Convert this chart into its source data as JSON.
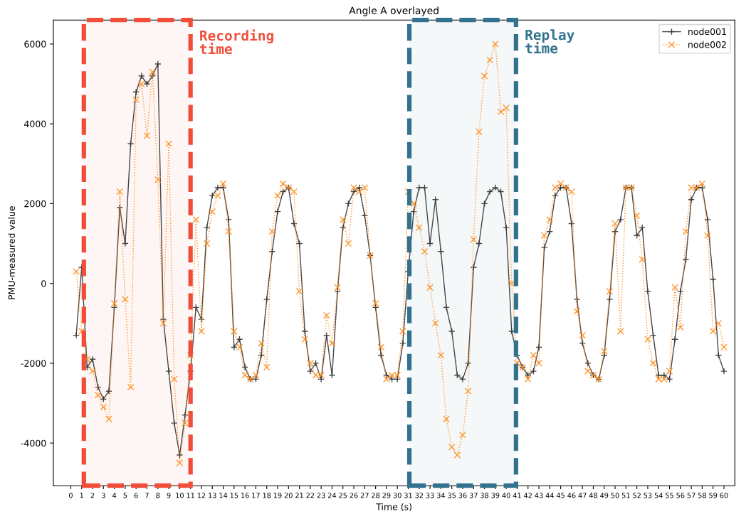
{
  "chart_data": {
    "type": "line",
    "title": "Angle A overlayed",
    "xlabel": "Time (s)",
    "ylabel": "PMU-measured value",
    "x": [
      0.5,
      1.0,
      1.5,
      2.0,
      2.5,
      3.0,
      3.5,
      4.0,
      4.5,
      5.0,
      5.5,
      6.0,
      6.5,
      7.0,
      7.5,
      8.0,
      8.5,
      9.0,
      9.5,
      10.0,
      10.5,
      11.0,
      11.5,
      12.0,
      12.5,
      13.0,
      13.5,
      14.0,
      14.5,
      15.0,
      15.5,
      16.0,
      16.5,
      17.0,
      17.5,
      18.0,
      18.5,
      19.0,
      19.5,
      20.0,
      20.5,
      21.0,
      21.5,
      22.0,
      22.5,
      23.0,
      23.5,
      24.0,
      24.5,
      25.0,
      25.5,
      26.0,
      26.5,
      27.0,
      27.5,
      28.0,
      28.5,
      29.0,
      29.5,
      30.0,
      30.5,
      31.0,
      31.5,
      32.0,
      32.5,
      33.0,
      33.5,
      34.0,
      34.5,
      35.0,
      35.5,
      36.0,
      36.5,
      37.0,
      37.5,
      38.0,
      38.5,
      39.0,
      39.5,
      40.0,
      40.5,
      41.0,
      41.5,
      42.0,
      42.5,
      43.0,
      43.5,
      44.0,
      44.5,
      45.0,
      45.5,
      46.0,
      46.5,
      47.0,
      47.5,
      48.0,
      48.5,
      49.0,
      49.5,
      50.0,
      50.5,
      51.0,
      51.5,
      52.0,
      52.5,
      53.0,
      53.5,
      54.0,
      54.5,
      55.0,
      55.5,
      56.0,
      56.5,
      57.0,
      57.5,
      58.0,
      58.5,
      59.0,
      59.5,
      60.0
    ],
    "series": [
      {
        "name": "node001",
        "color": "#333333",
        "marker": "plus",
        "line_style": "solid",
        "values": [
          -1300,
          400,
          -2100,
          -1900,
          -2600,
          -2900,
          -2700,
          -600,
          1900,
          1000,
          3500,
          4800,
          5200,
          5000,
          5200,
          5500,
          -900,
          -2200,
          -3500,
          -4300,
          -3300,
          -2200,
          -600,
          -900,
          1400,
          2200,
          2400,
          2400,
          1600,
          -1600,
          -1400,
          -2100,
          -2400,
          -2400,
          -1800,
          -400,
          800,
          1800,
          2300,
          2400,
          1500,
          1000,
          -1200,
          -2200,
          -2000,
          -2400,
          -1300,
          -2300,
          -200,
          1400,
          2000,
          2300,
          2400,
          1700,
          700,
          -600,
          -1800,
          -2300,
          -2400,
          -2400,
          -1500,
          300,
          1800,
          2400,
          2400,
          1000,
          2100,
          800,
          -600,
          -1200,
          -2300,
          -2400,
          -2000,
          400,
          1000,
          2000,
          2300,
          2400,
          2300,
          1400,
          -1200,
          -1800,
          -2100,
          -2300,
          -2200,
          -1600,
          900,
          1300,
          2200,
          2400,
          2400,
          1500,
          -400,
          -1500,
          -2000,
          -2300,
          -2400,
          -1800,
          -400,
          1300,
          1600,
          2400,
          2400,
          1200,
          1400,
          -200,
          -1300,
          -2300,
          -2300,
          -2400,
          -1400,
          -200,
          600,
          2100,
          2400,
          2400,
          1600,
          100,
          -1800,
          -2200
        ]
      },
      {
        "name": "node002",
        "color": "#ff8c1a",
        "marker": "cross",
        "line_style": "dotted",
        "values": [
          300,
          -1200,
          -1900,
          -2200,
          -2800,
          -3100,
          -3400,
          -500,
          2300,
          -400,
          -2600,
          4600,
          5000,
          3700,
          5300,
          2600,
          -1000,
          3500,
          -2400,
          -4500,
          -3500,
          -1800,
          1600,
          -1200,
          1000,
          1800,
          2200,
          2500,
          1300,
          -1200,
          -1600,
          -2300,
          -2400,
          -2300,
          -1500,
          -2100,
          1300,
          2200,
          2500,
          2400,
          2300,
          -200,
          -1400,
          -2000,
          -2300,
          -2300,
          -800,
          -1500,
          -100,
          1600,
          1000,
          2400,
          2300,
          2400,
          700,
          -500,
          -1600,
          -2400,
          -2300,
          -2300,
          -1200,
          2300,
          2000,
          1400,
          800,
          -100,
          -1000,
          -1800,
          -3400,
          -4100,
          -4300,
          -3800,
          -2700,
          1100,
          3800,
          5200,
          5600,
          6000,
          4300,
          4400,
          0,
          -2000,
          -2100,
          -2400,
          -1800,
          -2000,
          1200,
          1600,
          2400,
          2500,
          2400,
          2300,
          -700,
          -1300,
          -2200,
          -2300,
          -2400,
          -1700,
          -200,
          1500,
          -1200,
          2400,
          2400,
          1700,
          600,
          -1400,
          -2000,
          -2400,
          -2400,
          -2200,
          -100,
          -1100,
          1300,
          2400,
          2400,
          2500,
          1200,
          -1200,
          -1000,
          -1600
        ]
      }
    ],
    "xlim": [
      -1.6,
      61
    ],
    "xticks": [
      0,
      1,
      2,
      3,
      4,
      5,
      6,
      7,
      8,
      9,
      10,
      11,
      12,
      13,
      14,
      15,
      16,
      17,
      18,
      19,
      20,
      21,
      22,
      23,
      24,
      25,
      26,
      27,
      28,
      29,
      30,
      31,
      32,
      33,
      34,
      35,
      36,
      37,
      38,
      39,
      40,
      41,
      42,
      43,
      44,
      45,
      46,
      47,
      48,
      49,
      50,
      51,
      52,
      53,
      54,
      55,
      56,
      57,
      58,
      59,
      60
    ],
    "ylim": [
      -5070,
      6600
    ],
    "yticks": [
      -4000,
      -2000,
      0,
      2000,
      4000,
      6000
    ],
    "bands": [
      {
        "axis": "x",
        "from": 1.2,
        "to": 11.0,
        "label": "Recording\ntime",
        "color": "#f04e3a"
      },
      {
        "axis": "x",
        "from": 31.1,
        "to": 40.9,
        "label": "Replay\ntime",
        "color": "#33728f"
      }
    ],
    "legend": "top right",
    "grid": false
  }
}
